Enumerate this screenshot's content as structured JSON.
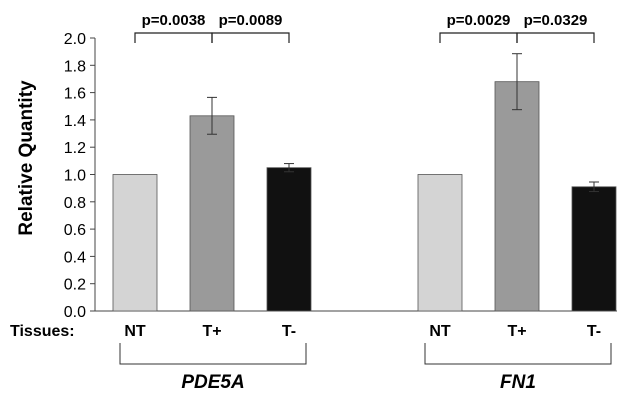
{
  "chart_data": {
    "type": "bar",
    "ylabel": "Relative Quantity",
    "xlabel": "",
    "ylim": [
      0,
      2.0
    ],
    "yticks": [
      "0.0",
      "0.2",
      "0.4",
      "0.6",
      "0.8",
      "1.0",
      "1.2",
      "1.4",
      "1.6",
      "1.8",
      "2.0"
    ],
    "grid": false,
    "row_label": "Tissues:",
    "groups": [
      {
        "name": "PDE5A",
        "categories": [
          "NT",
          "T+",
          "T-"
        ],
        "values": [
          1.0,
          1.43,
          1.05
        ],
        "error": [
          0,
          0.135,
          0.03
        ],
        "colors": [
          "#d4d4d4",
          "#9a9a9a",
          "#111111"
        ],
        "comparisons": [
          {
            "from": "NT",
            "to": "T+",
            "label": "p=0.0038"
          },
          {
            "from": "T+",
            "to": "T-",
            "label": "p=0.0089"
          }
        ]
      },
      {
        "name": "FN1",
        "categories": [
          "NT",
          "T+",
          "T-"
        ],
        "values": [
          1.0,
          1.68,
          0.91
        ],
        "error": [
          0,
          0.205,
          0.035
        ],
        "colors": [
          "#d4d4d4",
          "#9a9a9a",
          "#111111"
        ],
        "comparisons": [
          {
            "from": "NT",
            "to": "T+",
            "label": "p=0.0029"
          },
          {
            "from": "T+",
            "to": "T-",
            "label": "p=0.0329"
          }
        ]
      }
    ]
  }
}
